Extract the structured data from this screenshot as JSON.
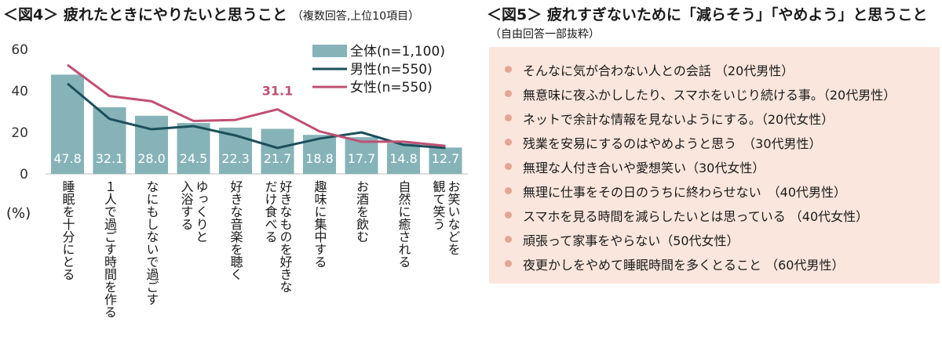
{
  "fig4": {
    "title": "＜図4＞ 疲れたときにやりたいと思うこと",
    "note": "（複数回答,上位10項目）"
  },
  "fig5": {
    "title": "＜図5＞ 疲れすぎないために「減らそう」「やめよう」と思うこと",
    "subtitle": "（自由回答一部抜粋）",
    "items": [
      "そんなに気が合わない人との会話 （20代男性）",
      "無意味に夜ふかししたり、スマホをいじり続ける事。（20代男性）",
      "ネットで余計な情報を見ないようにする。（20代女性）",
      "残業を安易にするのはやめようと思う　（30代男性）",
      "無理な人付き合いや愛想笑い（30代女性）",
      "無理に仕事をその日のうちに終わらせない　（40代男性）",
      "スマホを見る時間を減らしたいとは思っている （40代女性）",
      "頑張って家事をやらない（50代女性）",
      "夜更かしをやめて睡眠時間を多くとること （60代男性）"
    ]
  },
  "chart_data": {
    "type": "bar",
    "unit_label": "(%)",
    "ylim": [
      0,
      60
    ],
    "yticks": [
      0,
      20,
      40,
      60
    ],
    "grid": false,
    "legend_position": "top-right",
    "categories": [
      "睡眠を十分にとる",
      "1人で過ごす時間を作る",
      "なにもしないで過ごす",
      "ゆっくりと入浴する",
      "好きな音楽を聴く",
      "好きなものを好きなだけ食べる",
      "趣味に集中する",
      "お酒を飲む",
      "自然に癒される",
      "お笑いなどを観て笑う"
    ],
    "category_lines": [
      [
        "睡眠を十分にとる"
      ],
      [
        "１人で過ごす時間を作る"
      ],
      [
        "なにもしないで過ごす"
      ],
      [
        "ゆっくりと",
        "入浴する"
      ],
      [
        "好きな音楽を聴く"
      ],
      [
        "好きなものを好きな",
        "だけ食べる"
      ],
      [
        "趣味に集中する"
      ],
      [
        "お酒を飲む"
      ],
      [
        "自然に癒される"
      ],
      [
        "お笑いなどを",
        "観て笑う"
      ]
    ],
    "series": [
      {
        "name": "全体(n=1,100)",
        "type": "bar",
        "color": "#86b3b8",
        "values": [
          47.8,
          32.1,
          28.0,
          24.5,
          22.3,
          21.7,
          18.8,
          17.7,
          14.8,
          12.7
        ],
        "labels": [
          "47.8",
          "32.1",
          "28.0",
          "24.5",
          "22.3",
          "21.7",
          "18.8",
          "17.7",
          "14.8",
          "12.7"
        ]
      },
      {
        "name": "男性(n=550)",
        "type": "line",
        "color": "#1b4f5b",
        "values": [
          43.5,
          26.5,
          21.5,
          23.0,
          18.5,
          12.5,
          17.0,
          20.0,
          14.0,
          12.5
        ]
      },
      {
        "name": "女性(n=550)",
        "type": "line",
        "color": "#c05073",
        "values": [
          52.5,
          37.5,
          35.0,
          25.5,
          26.0,
          31.1,
          20.5,
          15.5,
          15.5,
          13.5
        ]
      }
    ],
    "annotation": {
      "text": "31.1",
      "series": "女性(n=550)",
      "index": 5,
      "color": "#c05073"
    }
  }
}
